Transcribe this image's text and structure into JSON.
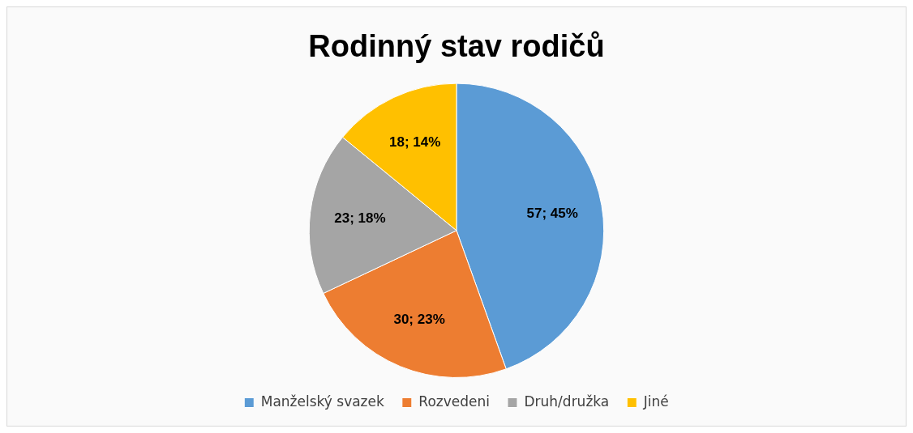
{
  "chart_data": {
    "type": "pie",
    "title": "Rodinný stav rodičů",
    "categories": [
      "Manželský svazek",
      "Rozvedeni",
      "Druh/družka",
      "Jiné"
    ],
    "values": [
      57,
      30,
      23,
      18
    ],
    "colors": [
      "#5b9bd5",
      "#ed7d31",
      "#a5a5a5",
      "#ffc000"
    ],
    "value_labels": [
      "57; 45%",
      "30; 23%",
      "23; 18%",
      "18; 14%"
    ],
    "legend": "bottom"
  }
}
